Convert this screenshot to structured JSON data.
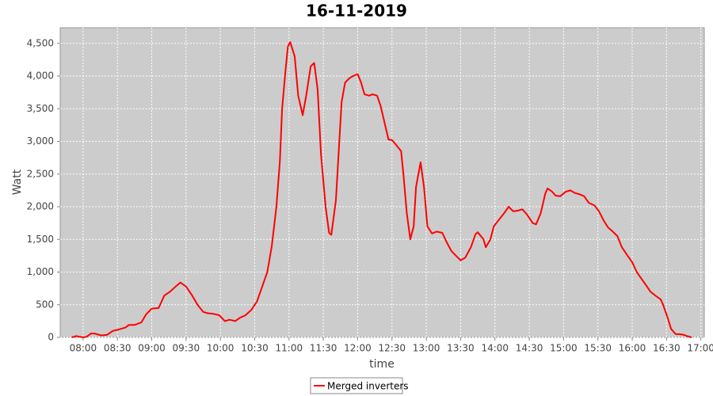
{
  "chart_data": {
    "type": "line",
    "title": "16-11-2019",
    "x_label": "time",
    "y_label": "Watt",
    "x": [
      "07:50",
      "07:54",
      "08:00",
      "08:03",
      "08:07",
      "08:10",
      "08:16",
      "08:21",
      "08:26",
      "08:31",
      "08:37",
      "08:40",
      "08:45",
      "08:51",
      "08:55",
      "09:00",
      "09:06",
      "09:11",
      "09:16",
      "09:21",
      "09:25",
      "09:30",
      "09:35",
      "09:40",
      "09:45",
      "09:49",
      "09:54",
      "09:59",
      "10:04",
      "10:08",
      "10:13",
      "10:17",
      "10:22",
      "10:27",
      "10:32",
      "10:36",
      "10:41",
      "10:45",
      "10:49",
      "10:52",
      "10:54",
      "10:57",
      "10:59",
      "11:01",
      "11:05",
      "11:08",
      "11:12",
      "11:15",
      "11:19",
      "11:22",
      "11:25",
      "11:28",
      "11:32",
      "11:35",
      "11:37",
      "11:41",
      "11:44",
      "11:46",
      "11:49",
      "11:53",
      "11:56",
      "12:00",
      "12:03",
      "12:06",
      "12:10",
      "12:13",
      "12:17",
      "12:20",
      "12:24",
      "12:27",
      "12:30",
      "12:33",
      "12:38",
      "12:40",
      "12:43",
      "12:46",
      "12:49",
      "12:51",
      "12:55",
      "12:58",
      "13:01",
      "13:05",
      "13:09",
      "13:14",
      "13:18",
      "13:22",
      "13:26",
      "13:30",
      "13:34",
      "13:39",
      "13:43",
      "13:45",
      "13:50",
      "13:52",
      "13:56",
      "13:59",
      "14:03",
      "14:08",
      "14:12",
      "14:16",
      "14:20",
      "14:24",
      "14:28",
      "14:33",
      "14:36",
      "14:40",
      "14:44",
      "14:46",
      "14:50",
      "14:53",
      "14:57",
      "15:02",
      "15:06",
      "15:10",
      "15:14",
      "15:18",
      "15:22",
      "15:27",
      "15:31",
      "15:35",
      "15:39",
      "15:43",
      "15:47",
      "15:51",
      "15:56",
      "16:00",
      "16:04",
      "16:08",
      "16:12",
      "16:16",
      "16:21",
      "16:25",
      "16:27",
      "16:31",
      "16:34",
      "16:38",
      "16:41",
      "16:45",
      "16:48",
      "16:52"
    ],
    "series": [
      {
        "name": "Merged inverters",
        "color": "#ff0000",
        "values": [
          0,
          20,
          0,
          10,
          60,
          60,
          30,
          40,
          100,
          120,
          150,
          190,
          190,
          230,
          350,
          440,
          450,
          640,
          700,
          780,
          840,
          780,
          650,
          500,
          390,
          370,
          360,
          340,
          250,
          270,
          250,
          300,
          340,
          420,
          550,
          750,
          1000,
          1400,
          2000,
          2700,
          3500,
          4100,
          4450,
          4520,
          4300,
          3700,
          3400,
          3700,
          4150,
          4200,
          3800,
          2800,
          2000,
          1600,
          1570,
          2100,
          3000,
          3600,
          3900,
          3970,
          4000,
          4030,
          3900,
          3720,
          3700,
          3720,
          3700,
          3550,
          3250,
          3030,
          3020,
          2960,
          2850,
          2500,
          1900,
          1500,
          1700,
          2300,
          2680,
          2300,
          1700,
          1590,
          1620,
          1600,
          1450,
          1320,
          1250,
          1180,
          1220,
          1380,
          1580,
          1610,
          1500,
          1380,
          1500,
          1700,
          1790,
          1900,
          2000,
          1930,
          1940,
          1960,
          1880,
          1750,
          1730,
          1900,
          2200,
          2280,
          2230,
          2170,
          2160,
          2230,
          2250,
          2210,
          2190,
          2160,
          2060,
          2020,
          1930,
          1790,
          1680,
          1620,
          1550,
          1380,
          1250,
          1150,
          1000,
          900,
          800,
          700,
          630,
          580,
          500,
          300,
          130,
          50,
          50,
          40,
          20,
          0
        ]
      }
    ],
    "xlim": [
      "07:40",
      "17:03"
    ],
    "xticks": [
      "08:00",
      "08:30",
      "09:00",
      "09:30",
      "10:00",
      "10:30",
      "11:00",
      "11:30",
      "12:00",
      "12:30",
      "13:00",
      "13:30",
      "14:00",
      "14:30",
      "15:00",
      "15:30",
      "16:00",
      "16:30",
      "17:00"
    ],
    "ylim": [
      0,
      4740
    ],
    "yticks": [
      0,
      500,
      {
        "value": 1000,
        "label": "1,000"
      },
      {
        "value": 1500,
        "label": "1,500"
      },
      {
        "value": 2000,
        "label": "2,000"
      },
      {
        "value": 2500,
        "label": "2,500"
      },
      {
        "value": 3000,
        "label": "3,000"
      },
      {
        "value": 3500,
        "label": "3,500"
      },
      {
        "value": 4000,
        "label": "4,000"
      },
      {
        "value": 4500,
        "label": "4,500"
      }
    ],
    "grid": true
  }
}
